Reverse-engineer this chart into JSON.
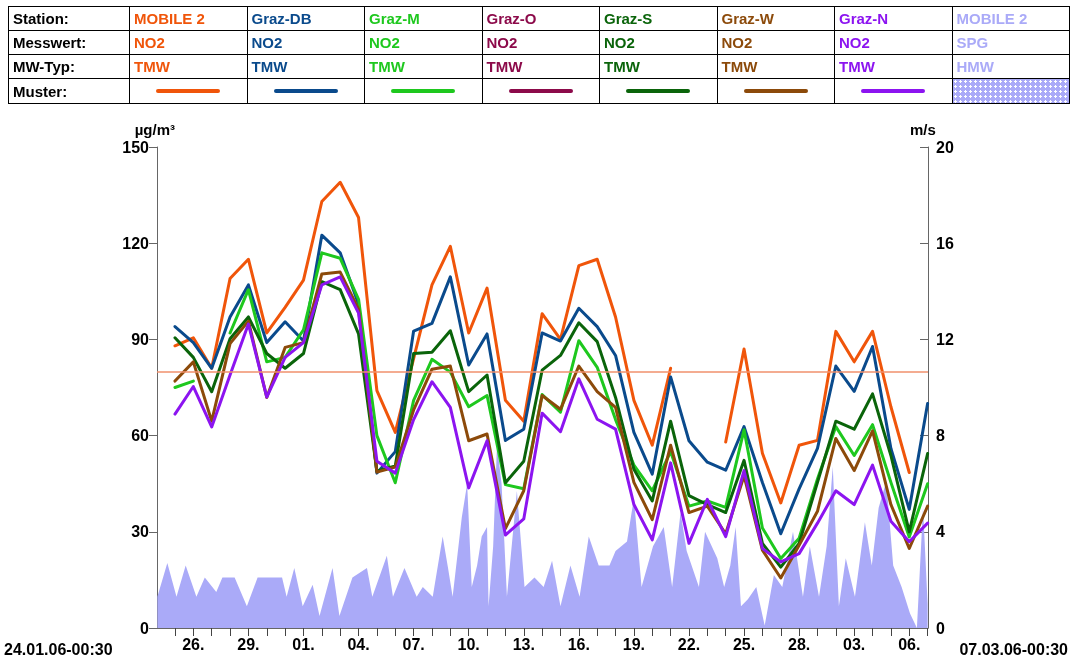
{
  "chart_data": {
    "type": "line",
    "legend": "top",
    "legend_title": "Station:\nMesswert:\nMW-Typ:\nMuster:",
    "marker": "none",
    "ylabel": "µg/m³",
    "y2label": "m/s",
    "annotations": [
      "24.01.06-00:30",
      "07.03.06-00:30"
    ],
    "xlim": [
      "--01-24T00:30",
      "--03-07T00:30"
    ],
    "xticks": [
      {
        "value": "--01-25",
        "label": null
      },
      {
        "value": "--01-26",
        "label": "26."
      },
      {
        "value": "--01-27",
        "label": null
      },
      {
        "value": "--01-28",
        "label": null
      },
      {
        "value": "--01-29",
        "label": "29."
      },
      {
        "value": "--01-30",
        "label": null
      },
      {
        "value": "--01-31",
        "label": null
      },
      {
        "value": "--02-01",
        "label": "01."
      },
      {
        "value": "--02-02",
        "label": null
      },
      {
        "value": "--02-03",
        "label": null
      },
      {
        "value": "--02-04",
        "label": "04."
      },
      {
        "value": "--02-05",
        "label": null
      },
      {
        "value": "--02-06",
        "label": null
      },
      {
        "value": "--02-07",
        "label": "07."
      },
      {
        "value": "--02-08",
        "label": null
      },
      {
        "value": "--02-09",
        "label": null
      },
      {
        "value": "--02-10",
        "label": "10."
      },
      {
        "value": "--02-11",
        "label": null
      },
      {
        "value": "--02-12",
        "label": null
      },
      {
        "value": "--02-13",
        "label": "13."
      },
      {
        "value": "--02-14",
        "label": null
      },
      {
        "value": "--02-15",
        "label": null
      },
      {
        "value": "--02-16",
        "label": "16."
      },
      {
        "value": "--02-17",
        "label": null
      },
      {
        "value": "--02-18",
        "label": null
      },
      {
        "value": "--02-19",
        "label": "19."
      },
      {
        "value": "--02-20",
        "label": null
      },
      {
        "value": "--02-21",
        "label": null
      },
      {
        "value": "--02-22",
        "label": "22."
      },
      {
        "value": "--02-23",
        "label": null
      },
      {
        "value": "--02-24",
        "label": null
      },
      {
        "value": "--02-25",
        "label": "25."
      },
      {
        "value": "--02-26",
        "label": null
      },
      {
        "value": "--02-27",
        "label": null
      },
      {
        "value": "--02-28",
        "label": "28."
      },
      {
        "value": "--03-01",
        "label": null
      },
      {
        "value": "--03-02",
        "label": null
      },
      {
        "value": "--03-03",
        "label": "03."
      },
      {
        "value": "--03-04",
        "label": null
      },
      {
        "value": "--03-05",
        "label": null
      },
      {
        "value": "--03-06",
        "label": "06."
      },
      {
        "value": "--03-07",
        "label": null
      }
    ],
    "ylim": [
      0,
      150
    ],
    "yticks": [
      0,
      30,
      60,
      90,
      120,
      150
    ],
    "y2lim": [
      0,
      20
    ],
    "y2ticks": [
      0,
      4,
      8,
      12,
      16,
      20
    ],
    "ref_lines": [
      {
        "axis": "y",
        "value": 80,
        "color": "#f0906c"
      }
    ],
    "x": [
      "--01-25",
      "--01-26",
      "--01-27",
      "--01-28",
      "--01-29",
      "--01-30",
      "--01-31",
      "--02-01",
      "--02-02",
      "--02-03",
      "--02-04",
      "--02-05",
      "--02-06",
      "--02-07",
      "--02-08",
      "--02-09",
      "--02-10",
      "--02-11",
      "--02-12",
      "--02-13",
      "--02-14",
      "--02-15",
      "--02-16",
      "--02-17",
      "--02-18",
      "--02-19",
      "--02-20",
      "--02-21",
      "--02-22",
      "--02-23",
      "--02-24",
      "--02-25",
      "--02-26",
      "--02-27",
      "--02-28",
      "--03-01",
      "--03-02",
      "--03-03",
      "--03-04",
      "--03-05",
      "--03-06",
      "--03-07"
    ],
    "series": [
      {
        "name": "MOBILE 2\nNO2\nTMW",
        "color": "#f0550a",
        "values": [
          88,
          90.5,
          81,
          109,
          115,
          92,
          100,
          108.5,
          133,
          139,
          128,
          74,
          61,
          84,
          107,
          119,
          92,
          106,
          71,
          64.5,
          98,
          90,
          113,
          115,
          97,
          71,
          57,
          81,
          null,
          null,
          58,
          87,
          54.5,
          39,
          57,
          58.5,
          92.5,
          83,
          92.5,
          69,
          48.5,
          null
        ]
      },
      {
        "name": "Graz-DB\nNO2\nTMW",
        "color": "#0a4a8c",
        "values": [
          94,
          89,
          81,
          97,
          107,
          89,
          95.5,
          89.5,
          122.5,
          117,
          101,
          48.3,
          55,
          92.6,
          95,
          109.5,
          82,
          91.7,
          58.5,
          62,
          92,
          89.5,
          99.7,
          94,
          85,
          61,
          48,
          78.3,
          58.4,
          51.7,
          49.2,
          62.8,
          45.4,
          29.4,
          43.4,
          56,
          81.7,
          73.8,
          87.8,
          56,
          37,
          70
        ]
      },
      {
        "name": "Graz-M\nNO2\nTMW",
        "color": "#1ec81e",
        "values": [
          75,
          77,
          null,
          92,
          105.5,
          83,
          84.4,
          93,
          117,
          115.3,
          102.5,
          60,
          45.3,
          71,
          83.8,
          79.8,
          69,
          72.5,
          44.7,
          43.4,
          72.8,
          67.3,
          89.6,
          81.3,
          65,
          50.8,
          42.8,
          55,
          38,
          39.6,
          37.6,
          61.8,
          31.2,
          21.7,
          28,
          46.5,
          62.8,
          53.8,
          63.4,
          45.4,
          28.4,
          45
        ]
      },
      {
        "name": "Graz-O\nNO2\nTMW",
        "color": "#8c0a4a",
        "values": [
          null,
          null,
          null,
          null,
          null,
          null,
          null,
          null,
          null,
          null,
          null,
          null,
          null,
          null,
          null,
          null,
          null,
          null,
          null,
          null,
          null,
          null,
          null,
          null,
          null,
          null,
          null,
          null,
          null,
          null,
          null,
          null,
          null,
          null,
          null,
          null,
          null,
          null,
          null,
          null,
          null,
          null
        ]
      },
      {
        "name": "Graz-S\nNO2\nTMW",
        "color": "#0a640a",
        "values": [
          90.5,
          84.4,
          73.7,
          90.2,
          97,
          85.6,
          81,
          85.6,
          108,
          105.5,
          91.7,
          48.9,
          50.5,
          85.6,
          86,
          92.7,
          73.7,
          78.9,
          45.3,
          52,
          80.4,
          85,
          95.2,
          89.3,
          71.9,
          49.5,
          39.6,
          64.5,
          41.3,
          38.5,
          36,
          52.3,
          26.4,
          19,
          26.4,
          45.4,
          64.5,
          62,
          73,
          53.8,
          30,
          54.4
        ]
      },
      {
        "name": "Graz-W\nNO2\nTMW",
        "color": "#8c4a0a",
        "values": [
          77,
          83,
          64.5,
          88.7,
          95.7,
          71.9,
          87.5,
          89,
          110.4,
          111,
          99.4,
          48.6,
          50.2,
          68,
          80.7,
          81.7,
          58.4,
          60.5,
          31,
          42.8,
          72.5,
          68.2,
          81.7,
          73.7,
          68.8,
          45.4,
          33.8,
          57,
          36,
          38,
          29.4,
          47.5,
          24.3,
          15.6,
          25.8,
          36.4,
          59.1,
          49.1,
          61.5,
          38.5,
          24.8,
          38
        ]
      },
      {
        "name": "Graz-N\nNO2\nTMW",
        "color": "#8c14f0",
        "values": [
          66.7,
          75.3,
          62.7,
          78.9,
          94.8,
          72,
          84.4,
          89,
          107,
          109.5,
          98.2,
          52,
          48.3,
          65,
          76.8,
          68.8,
          43.7,
          58.4,
          29,
          34,
          67,
          61.2,
          77.7,
          65.1,
          62,
          38.5,
          27.5,
          51.5,
          26.4,
          40.1,
          28.5,
          49.1,
          24.8,
          20.6,
          23.2,
          32.7,
          42.8,
          38.5,
          50.8,
          33.3,
          26.9,
          32.7
        ]
      },
      {
        "name": "MOBILE 2\nSPG\nHMW",
        "type": "area",
        "axis": "y2",
        "color": "#aaaaf8",
        "x": [
          "--01-24T01:00",
          "--01-24T14:00",
          "--01-25T02:00",
          "--01-25T14:00",
          "--01-26T04:00",
          "--01-26T15:00",
          "--01-27T06:00",
          "--01-27T14:00",
          "--01-28T06:00",
          "--01-28T22:00",
          "--01-29T12:00",
          "--01-30T04:00",
          "--01-30T20:00",
          "--01-31T02:00",
          "--01-31T12:00",
          "--01-31T23:00",
          "--02-01T12:00",
          "--02-01T21:00",
          "--02-02T14:00",
          "--02-02T23:00",
          "--02-03T16:00",
          "--02-04T11:00",
          "--02-04T18:00",
          "--02-05T13:00",
          "--02-05T21:00",
          "--02-06T12:00",
          "--02-07T04:00",
          "--02-07T12:00",
          "--02-08T01:00",
          "--02-08T14:00",
          "--02-08T21:00",
          "--02-09T03:00",
          "--02-09T15:00",
          "--02-09T22:00",
          "--02-10T04:00",
          "--02-10T11:00",
          "--02-10T17:00",
          "--02-11T00:00",
          "--02-11T02:00",
          "--02-11T08:00",
          "--02-11T13:00",
          "--02-11T19:00",
          "--02-12T02:00",
          "--02-12T15:00",
          "--02-13T01:00",
          "--02-13T14:00",
          "--02-14T02:00",
          "--02-14T13:00",
          "--02-15T00:00",
          "--02-15T13:00",
          "--02-16T01:00",
          "--02-16T13:00",
          "--02-17T02:00",
          "--02-17T16:00",
          "--02-18T00:00",
          "--02-18T15:00",
          "--02-19T00:00",
          "--02-19T10:00",
          "--02-20T01:00",
          "--02-20T15:00",
          "--02-21T02:00",
          "--02-21T13:00",
          "--02-21T21:00",
          "--02-22T13:00",
          "--02-22T21:00",
          "--02-23T13:00",
          "--02-23T22:00",
          "--02-24T06:00",
          "--02-24T13:00",
          "--02-24T20:00",
          "--02-25T05:00",
          "--02-25T16:00",
          "--02-26T03:00",
          "--02-26T15:00",
          "--02-27T02:00",
          "--02-27T16:00",
          "--02-28T05:00",
          "--02-28T14:00",
          "--03-01T02:00",
          "--03-01T12:00",
          "--03-01T20:00",
          "--03-02T04:00",
          "--03-02T13:00",
          "--03-03T01:00",
          "--03-03T14:00",
          "--03-03T23:00",
          "--03-04T08:00",
          "--03-04T18:00",
          "--03-05T03:00",
          "--03-05T14:00",
          "--03-06T01:00",
          "--03-06T10:00",
          "--03-06T18:00",
          "--03-07T00:00"
        ],
        "values": [
          1.3,
          2.7,
          1.3,
          2.6,
          1.3,
          2.1,
          1.5,
          2.1,
          2.1,
          0.9,
          2.1,
          2.1,
          2.1,
          1.3,
          2.5,
          0.9,
          1.8,
          0.5,
          2.5,
          0.5,
          2.1,
          2.5,
          1.3,
          3.0,
          1.3,
          2.5,
          1.3,
          1.7,
          1.3,
          3.8,
          2.5,
          1.3,
          4.6,
          6.0,
          1.7,
          2.6,
          3.8,
          4.2,
          0.9,
          3.4,
          7.6,
          6.0,
          1.3,
          5.7,
          1.7,
          2.1,
          1.7,
          2.8,
          0.9,
          2.6,
          1.3,
          3.8,
          2.6,
          2.6,
          3.2,
          3.6,
          5.4,
          1.7,
          3.4,
          4.2,
          1.7,
          4.8,
          3.2,
          1.7,
          4.0,
          2.9,
          1.7,
          2.6,
          4.2,
          0.9,
          1.2,
          1.7,
          0.1,
          2.2,
          1.7,
          4.0,
          1.3,
          3.4,
          1.3,
          3.4,
          6.7,
          0.9,
          2.9,
          1.3,
          4.4,
          2.6,
          5.0,
          6.1,
          2.6,
          1.7,
          0.6,
          0.0,
          5.0,
          1.0
        ]
      }
    ]
  }
}
